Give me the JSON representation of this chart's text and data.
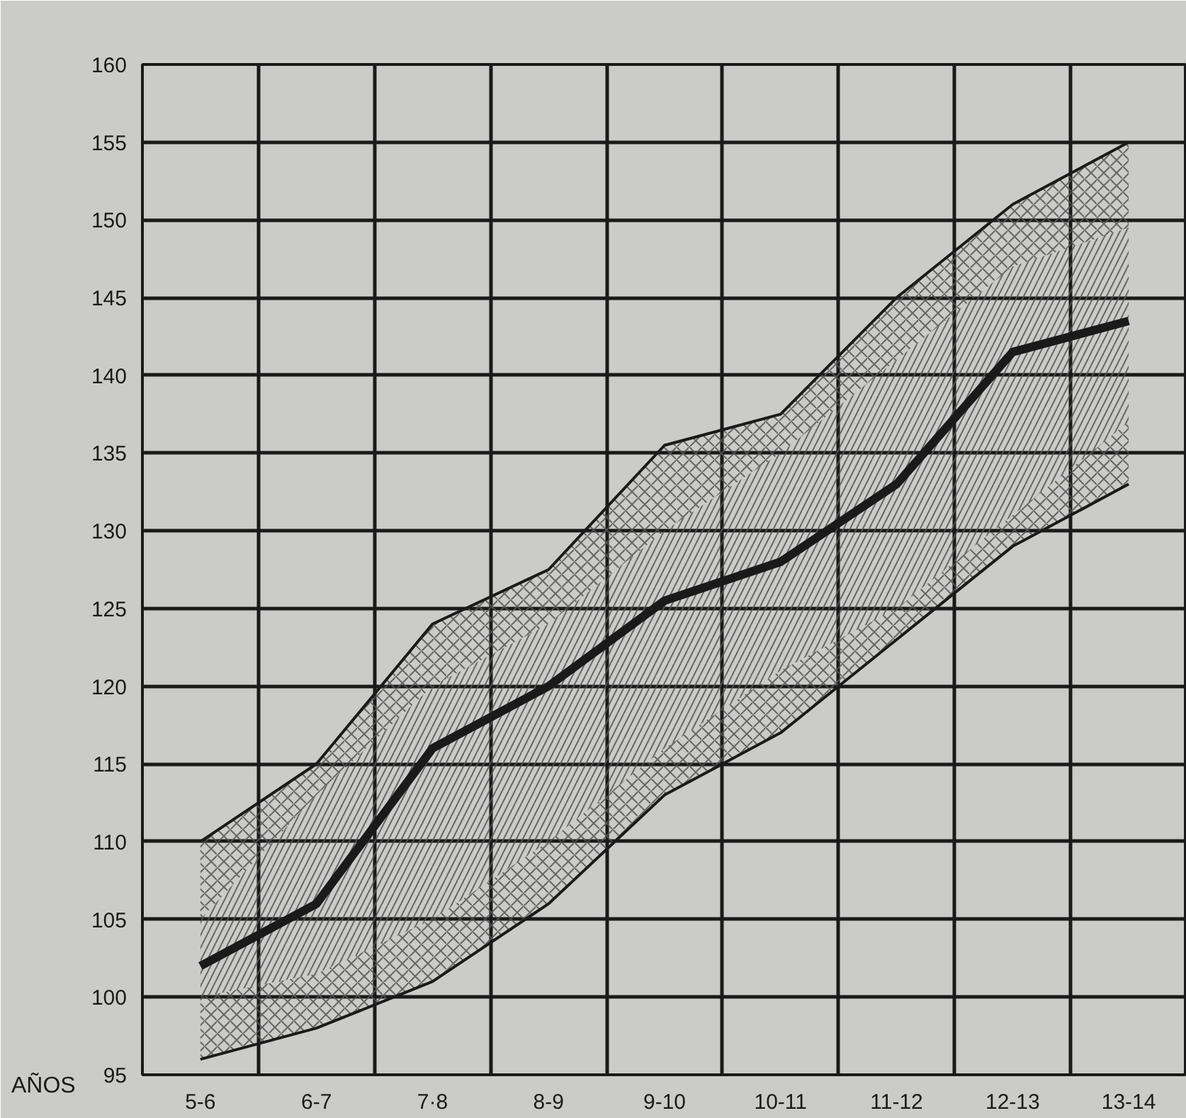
{
  "chart_data": {
    "type": "line",
    "xlabel": "AÑOS",
    "categories": [
      "5-6",
      "6-7",
      "7·8",
      "8-9",
      "9-10",
      "10-11",
      "11-12",
      "12-13",
      "13-14"
    ],
    "series": [
      {
        "type": "line",
        "color": "#1a1a1a",
        "values": [
          110,
          115,
          124,
          127.5,
          135.5,
          137.5,
          145,
          151,
          155
        ],
        "lower": [
          105,
          113,
          120,
          124,
          130,
          135,
          141,
          147,
          149.5
        ],
        "upper": [
          110,
          115,
          124,
          127.5,
          135.5,
          137.5,
          145,
          151,
          155
        ]
      },
      {
        "type": "line",
        "color": "#1a1a1a",
        "values": [
          102,
          106,
          116,
          120,
          125.5,
          128,
          133,
          141.5,
          143.5
        ],
        "lower": [
          100,
          101.5,
          105,
          110,
          116,
          121,
          125,
          131,
          137
        ],
        "upper": [
          105,
          113,
          120,
          124,
          130,
          135,
          141,
          147,
          149.5
        ]
      },
      {
        "type": "line",
        "color": "#1a1a1a",
        "values": [
          96,
          98,
          101,
          106,
          113,
          117,
          123,
          129,
          133
        ],
        "lower": [
          96,
          98,
          101,
          106,
          113,
          117,
          123,
          129,
          133
        ],
        "upper": [
          100,
          101.5,
          105,
          110,
          116,
          121,
          125,
          131,
          137
        ]
      }
    ],
    "ylim": [
      95,
      160
    ],
    "yticks": [
      95,
      100,
      105,
      110,
      115,
      120,
      125,
      130,
      135,
      140,
      145,
      150,
      155,
      160
    ],
    "grid": true
  }
}
